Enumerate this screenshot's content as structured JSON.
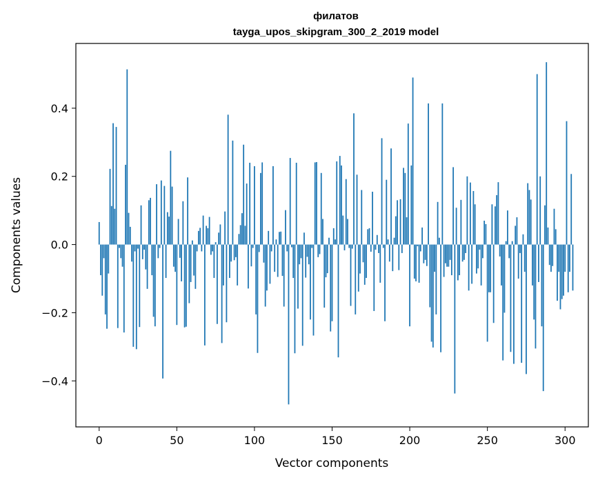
{
  "chart_data": {
    "type": "bar",
    "title": "филатов",
    "subtitle": "tayga_upos_skipgram_300_2_2019 model",
    "xlabel": "Vector components",
    "ylabel": "Components values",
    "xlim": [
      -15,
      315
    ],
    "ylim": [
      -0.535,
      0.59
    ],
    "xticks": [
      0,
      50,
      100,
      150,
      200,
      250,
      300
    ],
    "yticks": [
      -0.4,
      -0.2,
      0.0,
      0.2,
      0.4
    ],
    "ytick_labels": [
      "−0.4",
      "−0.2",
      "0.0",
      "0.2",
      "0.4"
    ],
    "xtick_labels": [
      "0",
      "50",
      "100",
      "150",
      "200",
      "250",
      "300"
    ],
    "grid": false,
    "bar_color": "#1f77b4",
    "values": [
      0.066,
      -0.09,
      -0.15,
      -0.04,
      -0.205,
      -0.247,
      -0.085,
      0.222,
      0.113,
      0.356,
      0.105,
      0.345,
      -0.245,
      -0.01,
      -0.04,
      -0.065,
      -0.258,
      0.234,
      0.514,
      0.093,
      0.052,
      -0.05,
      -0.3,
      -0.02,
      -0.307,
      -0.012,
      -0.242,
      0.115,
      -0.043,
      -0.015,
      -0.073,
      -0.13,
      0.13,
      0.137,
      -0.09,
      -0.212,
      -0.24,
      0.177,
      -0.04,
      -0.01,
      0.188,
      -0.393,
      0.172,
      -0.098,
      0.095,
      0.082,
      0.275,
      0.17,
      -0.065,
      -0.08,
      -0.236,
      0.075,
      -0.039,
      -0.108,
      0.127,
      -0.243,
      -0.241,
      0.197,
      -0.172,
      -0.11,
      0.012,
      -0.091,
      -0.13,
      -0.02,
      0.04,
      0.049,
      -0.02,
      0.085,
      -0.296,
      0.055,
      0.048,
      0.081,
      -0.03,
      -0.02,
      -0.098,
      0.007,
      -0.233,
      0.035,
      0.059,
      -0.289,
      -0.12,
      0.097,
      -0.228,
      0.381,
      -0.098,
      -0.05,
      0.305,
      -0.046,
      -0.037,
      -0.12,
      0.031,
      0.057,
      0.092,
      0.293,
      0.055,
      0.179,
      -0.129,
      0.24,
      -0.064,
      -0.01,
      0.23,
      -0.205,
      -0.318,
      -0.022,
      0.21,
      0.241,
      -0.053,
      -0.182,
      -0.135,
      0.04,
      -0.115,
      -0.02,
      0.23,
      -0.08,
      0.015,
      -0.095,
      0.037,
      0.038,
      -0.092,
      -0.182,
      0.101,
      -0.02,
      -0.469,
      0.254,
      -0.008,
      -0.098,
      -0.319,
      0.24,
      -0.188,
      -0.058,
      -0.04,
      -0.297,
      0.035,
      -0.097,
      -0.036,
      -0.058,
      -0.22,
      -0.01,
      -0.267,
      0.241,
      0.242,
      -0.037,
      -0.028,
      0.21,
      0.075,
      -0.185,
      -0.096,
      -0.084,
      0.02,
      -0.255,
      -0.225,
      0.048,
      0.015,
      0.244,
      -0.331,
      0.26,
      0.232,
      0.085,
      -0.017,
      0.192,
      0.075,
      -0.01,
      -0.18,
      -0.012,
      0.385,
      -0.205,
      0.205,
      -0.138,
      -0.085,
      0.16,
      -0.052,
      -0.118,
      -0.098,
      0.045,
      0.048,
      -0.021,
      0.155,
      -0.195,
      -0.015,
      0.028,
      -0.025,
      -0.112,
      0.312,
      -0.01,
      -0.225,
      0.19,
      0.015,
      -0.05,
      0.282,
      -0.078,
      0.02,
      0.083,
      0.13,
      -0.075,
      0.133,
      -0.025,
      0.225,
      0.21,
      0.08,
      0.355,
      -0.24,
      0.232,
      0.49,
      -0.1,
      -0.108,
      -0.005,
      -0.112,
      -0.02,
      0.05,
      -0.055,
      -0.045,
      -0.063,
      0.414,
      -0.184,
      -0.285,
      -0.302,
      -0.08,
      -0.205,
      0.125,
      0.02,
      -0.316,
      0.414,
      -0.095,
      -0.055,
      -0.065,
      -0.065,
      -0.045,
      -0.09,
      0.227,
      -0.437,
      0.108,
      -0.105,
      -0.09,
      0.131,
      -0.05,
      -0.045,
      -0.025,
      0.2,
      -0.135,
      0.182,
      -0.115,
      0.157,
      0.118,
      -0.085,
      -0.07,
      -0.015,
      -0.12,
      -0.04,
      0.07,
      0.06,
      -0.285,
      -0.14,
      -0.14,
      0.118,
      -0.23,
      0.112,
      0.145,
      0.183,
      -0.035,
      -0.12,
      -0.34,
      -0.2,
      0.01,
      0.1,
      -0.04,
      -0.315,
      0.01,
      -0.35,
      0.055,
      0.08,
      -0.1,
      -0.025,
      -0.347,
      0.03,
      -0.08,
      -0.38,
      0.18,
      0.16,
      0.132,
      -0.12,
      -0.22,
      -0.305,
      0.5,
      -0.11,
      0.2,
      -0.24,
      -0.43,
      0.115,
      0.535,
      0.05,
      -0.06,
      -0.08,
      -0.063,
      0.105,
      0.045,
      -0.165,
      -0.08,
      -0.19,
      -0.16,
      -0.15,
      -0.08,
      0.362,
      -0.14,
      -0.08,
      0.207,
      -0.135
    ]
  }
}
